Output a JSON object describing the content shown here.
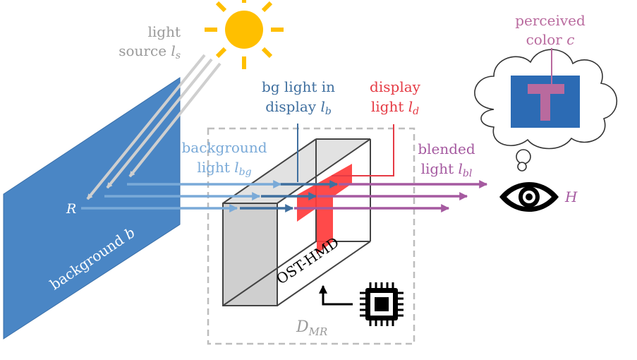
{
  "colors": {
    "gray": "#9a9a9a",
    "bg_blue": "#4a86c5",
    "light_blue": "#7aaad8",
    "dark_blue": "#3f6f9f",
    "red": "#e53a44",
    "purple": "#a55aa0",
    "sun": "#ffbf00",
    "cloud_blue": "#2c6bb4",
    "perceived": "#b96a9e"
  },
  "labels": {
    "light_source": "light",
    "light_source_2": "source",
    "light_source_var": "l",
    "light_source_sub": "s",
    "bg_light_display": "bg light in",
    "bg_light_display_2": "display",
    "bg_light_display_var": "l",
    "bg_light_display_sub": "b",
    "display_light": "display",
    "display_light_2": "light",
    "display_light_var": "l",
    "display_light_sub": "d",
    "background_light": "background",
    "background_light_2": "light",
    "background_light_var": "l",
    "background_light_sub": "bg",
    "blended_light": "blended",
    "blended_light_2": "light",
    "blended_light_var": "l",
    "blended_light_sub": "bl",
    "perceived_color": "perceived",
    "perceived_color_2": "color",
    "perceived_color_var": "c",
    "background": "background",
    "background_var": "b",
    "reflect": "R",
    "human": "H",
    "device": "OST-HMD",
    "mr_system": "D",
    "mr_system_sub": "MR"
  }
}
